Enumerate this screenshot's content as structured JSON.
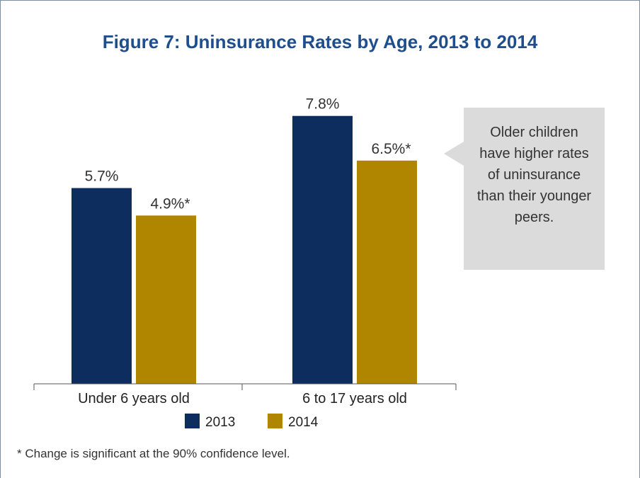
{
  "chart_data": {
    "type": "bar",
    "title": "Figure 7: Uninsurance Rates by Age, 2013 to 2014",
    "categories": [
      "Under 6 years old",
      "6 to 17 years old"
    ],
    "series": [
      {
        "name": "2013",
        "values": [
          5.7,
          7.8
        ],
        "labels": [
          "5.7%",
          "7.8%"
        ],
        "color": "#0c2d5e"
      },
      {
        "name": "2014",
        "values": [
          4.9,
          6.5
        ],
        "labels": [
          "4.9%*",
          "6.5%*"
        ],
        "color": "#b08600"
      }
    ],
    "ylim": [
      0,
      10
    ],
    "grid": false,
    "legend": "bottom-center",
    "annotation": "Older children have higher rates of uninsurance than their younger peers.",
    "footnote": "* Change is significant at the 90% confidence level."
  }
}
